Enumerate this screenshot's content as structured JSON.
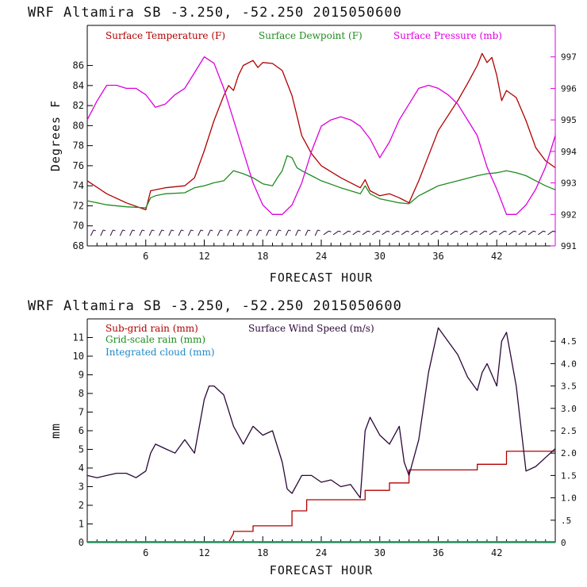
{
  "colors": {
    "temperature": "#b00000",
    "dewpoint": "#1e8c1e",
    "pressure": "#dd00dd",
    "subgrid_rain": "#b00000",
    "grid_rain": "#1e8c1e",
    "cloud": "#1e88c8",
    "wind": "#2a0838",
    "barbs": "#2a0838",
    "axis": "#000000"
  },
  "chart_data": [
    {
      "type": "line",
      "title": "WRF   Altamira  SB  -3.250, -52.250  2015050600",
      "xlabel": "FORECAST HOUR",
      "ylabel": "Degrees F",
      "xlim": [
        0,
        48
      ],
      "ylim": [
        68,
        90
      ],
      "y2lim": [
        991,
        998
      ],
      "x_ticks": [
        "6",
        "12",
        "18",
        "24",
        "30",
        "36",
        "42"
      ],
      "y_ticks": [
        "68",
        "70",
        "72",
        "74",
        "76",
        "78",
        "80",
        "82",
        "84",
        "86"
      ],
      "y2_ticks": [
        "991",
        "992",
        "993",
        "994",
        "995",
        "996",
        "997"
      ],
      "legend": [
        "Surface Temperature (F)",
        "Surface Dewpoint (F)",
        "Surface Pressure (mb)"
      ],
      "series": [
        {
          "name": "Surface Temperature (F)",
          "axis": "left",
          "x": [
            0,
            2,
            4,
            6,
            6.5,
            7,
            8,
            10,
            11,
            12,
            13,
            14,
            14.5,
            15,
            15.5,
            16,
            17,
            17.5,
            18,
            19,
            20,
            21,
            21.5,
            22,
            23,
            24,
            26,
            28,
            28.5,
            29,
            30,
            31,
            32,
            33,
            34,
            35,
            36,
            38,
            39,
            40,
            40.5,
            41,
            41.5,
            42,
            42.5,
            43,
            44,
            45,
            46,
            47,
            48
          ],
          "values": [
            74.5,
            73.2,
            72.3,
            71.6,
            73.5,
            73.6,
            73.8,
            74.0,
            74.8,
            77.5,
            80.5,
            83.0,
            84.0,
            83.5,
            85.0,
            86.0,
            86.5,
            85.8,
            86.3,
            86.2,
            85.5,
            83.0,
            81.0,
            79.0,
            77.2,
            76.0,
            74.8,
            73.8,
            74.6,
            73.5,
            73.0,
            73.2,
            72.8,
            72.3,
            74.5,
            77.0,
            79.5,
            82.5,
            84.2,
            86.0,
            87.2,
            86.3,
            86.8,
            85.0,
            82.5,
            83.5,
            82.8,
            80.5,
            77.8,
            76.5,
            75.8
          ]
        },
        {
          "name": "Surface Dewpoint (F)",
          "axis": "left",
          "x": [
            0,
            2,
            4,
            6,
            6.5,
            7,
            8,
            10,
            11,
            12,
            13,
            14,
            15,
            16,
            17,
            18,
            19,
            19.5,
            20,
            20.5,
            21,
            21.5,
            22,
            23,
            24,
            26,
            28,
            28.5,
            29,
            30,
            31,
            32,
            33,
            34,
            35,
            36,
            38,
            40,
            41,
            42,
            43,
            44,
            45,
            46,
            47,
            48
          ],
          "values": [
            72.5,
            72.1,
            71.9,
            71.8,
            72.8,
            73.0,
            73.2,
            73.3,
            73.8,
            74.0,
            74.3,
            74.5,
            75.5,
            75.2,
            74.8,
            74.2,
            74.0,
            74.8,
            75.5,
            77.0,
            76.8,
            75.8,
            75.5,
            75.0,
            74.5,
            73.8,
            73.2,
            74.0,
            73.2,
            72.7,
            72.5,
            72.3,
            72.2,
            73.0,
            73.5,
            74.0,
            74.5,
            75.0,
            75.2,
            75.3,
            75.5,
            75.3,
            75.0,
            74.5,
            74.0,
            73.6
          ]
        },
        {
          "name": "Surface Pressure (mb)",
          "axis": "right",
          "x": [
            0,
            1,
            2,
            3,
            4,
            5,
            6,
            7,
            8,
            9,
            10,
            11,
            12,
            13,
            14,
            15,
            16,
            17,
            18,
            19,
            20,
            21,
            22,
            23,
            24,
            25,
            26,
            27,
            28,
            29,
            30,
            31,
            32,
            33,
            34,
            35,
            36,
            37,
            38,
            39,
            40,
            41,
            42,
            43,
            44,
            45,
            46,
            47,
            48
          ],
          "values": [
            995.0,
            995.6,
            996.1,
            996.1,
            996.0,
            996.0,
            995.8,
            995.4,
            995.5,
            995.8,
            996.0,
            996.5,
            997.0,
            996.8,
            996.0,
            995.0,
            994.0,
            993.0,
            992.3,
            992.0,
            992.0,
            992.3,
            993.0,
            994.0,
            994.8,
            995.0,
            995.1,
            995.0,
            994.8,
            994.4,
            993.8,
            994.3,
            995.0,
            995.5,
            996.0,
            996.1,
            996.0,
            995.8,
            995.5,
            995.0,
            994.5,
            993.5,
            992.8,
            992.0,
            992.0,
            992.3,
            992.8,
            993.5,
            994.5
          ]
        }
      ]
    },
    {
      "type": "line",
      "title": "WRF   Altamira  SB  -3.250, -52.250  2015050600",
      "xlabel": "FORECAST HOUR",
      "ylabel": "mm",
      "xlim": [
        0,
        48
      ],
      "ylim": [
        0,
        12
      ],
      "y2lim": [
        0,
        5
      ],
      "x_ticks": [
        "6",
        "12",
        "18",
        "24",
        "30",
        "36",
        "42"
      ],
      "y_ticks": [
        "0",
        "1",
        "2",
        "3",
        "4",
        "5",
        "6",
        "7",
        "8",
        "9",
        "10",
        "11"
      ],
      "y2_ticks": [
        "0",
        ".5",
        "1.0",
        "1.5",
        "2.0",
        "2.5",
        "3.0",
        "3.5",
        "4.0",
        "4.5"
      ],
      "legend": [
        "Sub-grid rain (mm)",
        "Surface Wind Speed (m/s)",
        "Grid-scale rain (mm)",
        "Integrated cloud (mm)"
      ],
      "series": [
        {
          "name": "Sub-grid rain (mm)",
          "axis": "left",
          "x": [
            14.5,
            15,
            15,
            17,
            17,
            21,
            21,
            22.5,
            22.5,
            28.5,
            28.5,
            31,
            31,
            33,
            33,
            40,
            40,
            43,
            43,
            48
          ],
          "values": [
            0,
            0.5,
            0.6,
            0.6,
            0.9,
            0.9,
            1.7,
            1.7,
            2.3,
            2.3,
            2.8,
            2.8,
            3.2,
            3.2,
            3.9,
            3.9,
            4.2,
            4.2,
            4.9,
            4.9
          ]
        },
        {
          "name": "Surface Wind Speed (m/s)",
          "axis": "right",
          "x": [
            0,
            1,
            2,
            3,
            4,
            5,
            6,
            6.5,
            7,
            8,
            9,
            10,
            11,
            12,
            12.5,
            13,
            14,
            15,
            16,
            17,
            18,
            19,
            20,
            20.5,
            21,
            21.5,
            22,
            23,
            24,
            25,
            26,
            27,
            28,
            28.5,
            29,
            30,
            31,
            32,
            32.5,
            33,
            34,
            35,
            36,
            37,
            38,
            39,
            40,
            40.5,
            41,
            42,
            42.5,
            43,
            44,
            45,
            46,
            47,
            48
          ],
          "values": [
            1.5,
            1.45,
            1.5,
            1.55,
            1.55,
            1.45,
            1.6,
            2.0,
            2.2,
            2.1,
            2.0,
            2.3,
            2.0,
            3.2,
            3.5,
            3.5,
            3.3,
            2.6,
            2.2,
            2.6,
            2.4,
            2.5,
            1.8,
            1.2,
            1.1,
            1.3,
            1.5,
            1.5,
            1.35,
            1.4,
            1.25,
            1.3,
            1.0,
            2.5,
            2.8,
            2.4,
            2.2,
            2.6,
            1.8,
            1.5,
            2.3,
            3.8,
            4.8,
            4.5,
            4.2,
            3.7,
            3.4,
            3.8,
            4.0,
            3.5,
            4.5,
            4.7,
            3.5,
            1.6,
            1.7,
            1.9,
            2.1
          ]
        },
        {
          "name": "Grid-scale rain (mm)",
          "axis": "left",
          "x": [
            0,
            48
          ],
          "values": [
            0,
            0
          ]
        },
        {
          "name": "Integrated cloud (mm)",
          "axis": "left",
          "x": [
            0,
            48
          ],
          "values": [
            0.05,
            0.05
          ]
        }
      ]
    }
  ]
}
